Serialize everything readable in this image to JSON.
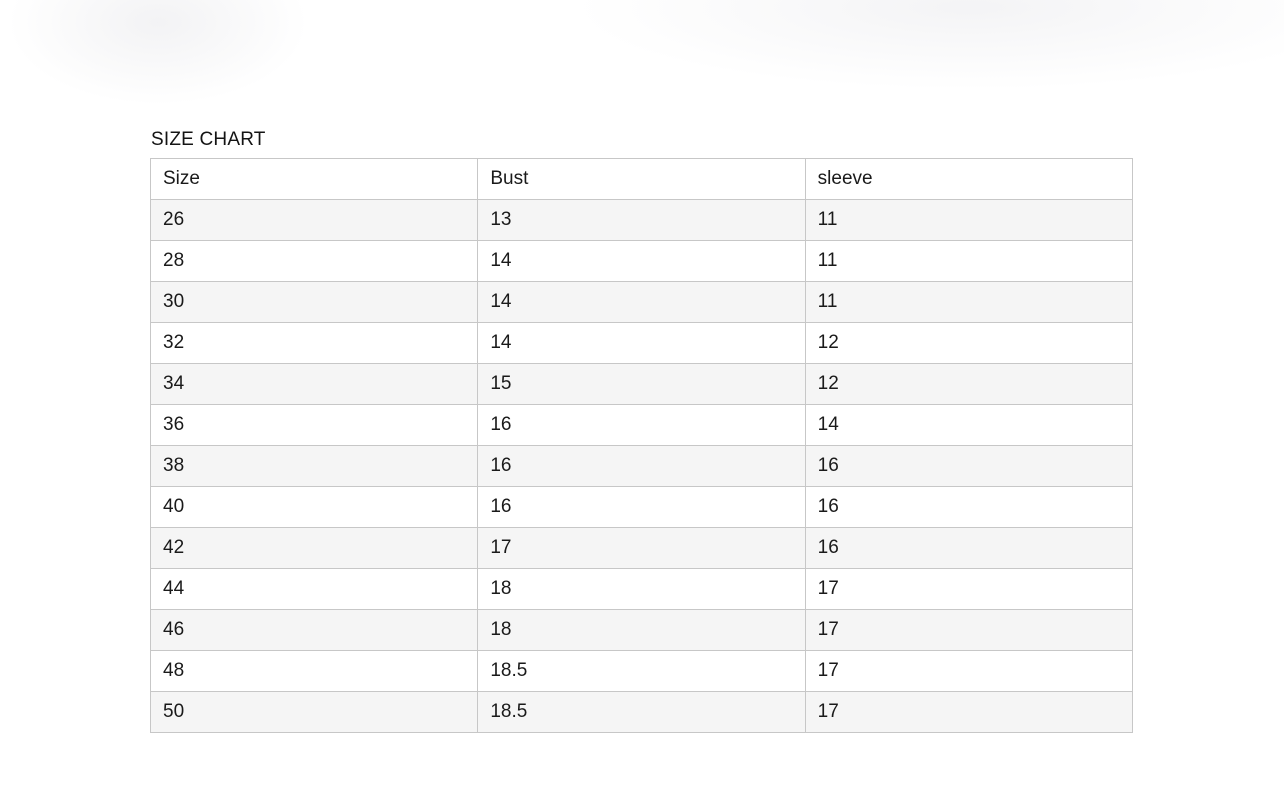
{
  "page": {
    "background_color": "#ffffff"
  },
  "size_chart": {
    "title": "SIZE CHART",
    "headers": [
      "Size",
      "Bust",
      "sleeve"
    ],
    "rows": [
      [
        "26",
        "13",
        "11"
      ],
      [
        "28",
        "14",
        "11"
      ],
      [
        "30",
        "14",
        "11"
      ],
      [
        "32",
        "14",
        "12"
      ],
      [
        "34",
        "15",
        "12"
      ],
      [
        "36",
        "16",
        "14"
      ],
      [
        "38",
        "16",
        "16"
      ],
      [
        "40",
        "16",
        "16"
      ],
      [
        "42",
        "17",
        "16"
      ],
      [
        "44",
        "18",
        "17"
      ],
      [
        "46",
        "18",
        "17"
      ],
      [
        "48",
        "18.5",
        "17"
      ],
      [
        "50",
        "18.5",
        "17"
      ]
    ],
    "colors": {
      "row_stripe": "#f5f5f5",
      "row_plain": "#ffffff",
      "border": "#c7c7c7",
      "text": "#1a1a1a",
      "header_background": "#ffffff"
    }
  }
}
